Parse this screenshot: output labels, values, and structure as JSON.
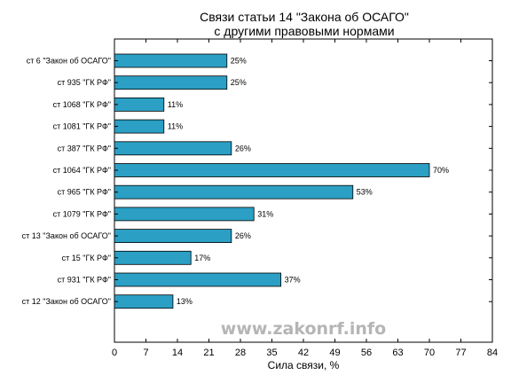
{
  "chart_data": {
    "type": "bar",
    "orientation": "horizontal",
    "title": [
      "Связи статьи 14 \"Закона об ОСАГО\"",
      "с другими правовыми нормами"
    ],
    "xlabel": "Сила связи, %",
    "ylabel": "",
    "xlim": [
      0,
      84
    ],
    "xticks": [
      0,
      7,
      14,
      21,
      28,
      35,
      42,
      49,
      56,
      63,
      70,
      77,
      84
    ],
    "grid": false,
    "legend": "none",
    "bar_color": "#2b9fc4",
    "categories": [
      "ст 6 \"Закон об ОСАГО\"",
      "ст 935 \"ГК РФ\"",
      "ст 1068 \"ГК РФ\"",
      "ст 1081 \"ГК РФ\"",
      "ст 387 \"ГК РФ\"",
      "ст 1064 \"ГК РФ\"",
      "ст 965 \"ГК РФ\"",
      "ст 1079 \"ГК РФ\"",
      "ст 13 \"Закон об ОСАГО\"",
      "ст 15 \"ГК РФ\"",
      "ст 931 \"ГК РФ\"",
      "ст 12 \"Закон об ОСАГО\""
    ],
    "values": [
      25,
      25,
      11,
      11,
      26,
      70,
      53,
      31,
      26,
      17,
      37,
      13
    ],
    "value_labels": [
      "25%",
      "25%",
      "11%",
      "11%",
      "26%",
      "70%",
      "53%",
      "31%",
      "26%",
      "17%",
      "37%",
      "13%"
    ]
  },
  "watermark": "www.zakonrf.info"
}
